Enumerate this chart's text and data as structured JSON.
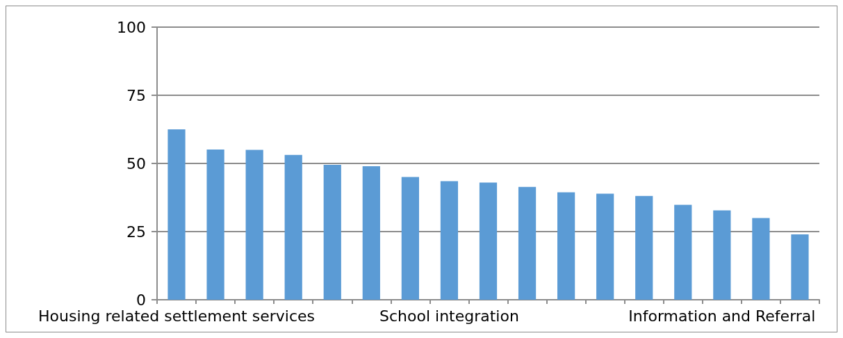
{
  "chart_data": {
    "type": "bar",
    "categories": [
      "Housing related settlement services",
      null,
      null,
      null,
      null,
      null,
      null,
      "School integration",
      null,
      null,
      null,
      null,
      null,
      null,
      "Information and Referral",
      null,
      null
    ],
    "values": [
      62.5,
      55.1,
      55.0,
      53.1,
      49.5,
      49.0,
      45.0,
      43.5,
      43.0,
      41.4,
      39.4,
      38.9,
      38.1,
      34.8,
      32.8,
      30.0,
      24.0
    ],
    "color": "#5b9bd5",
    "ylim": [
      0,
      100
    ],
    "yticks": [
      0,
      25,
      50,
      75,
      100
    ],
    "grid": "y"
  }
}
